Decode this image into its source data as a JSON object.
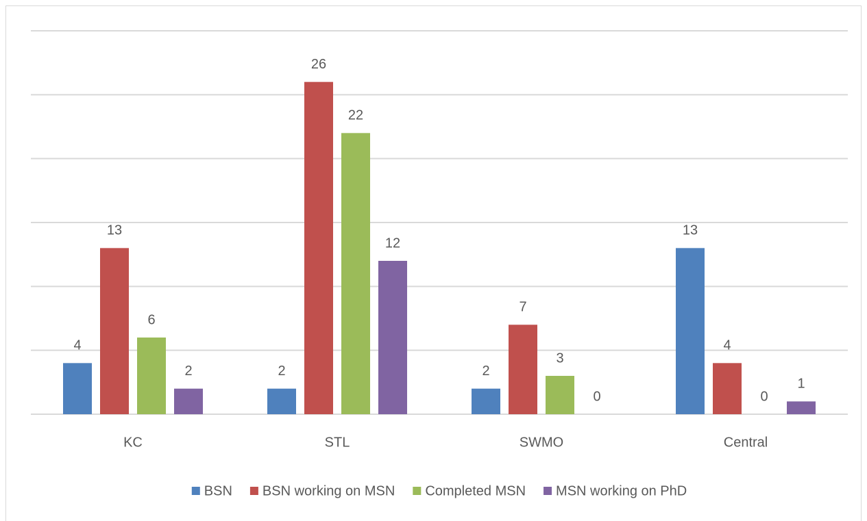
{
  "chart_data": {
    "type": "bar",
    "categories": [
      "KC",
      "STL",
      "SWMO",
      "Central"
    ],
    "series": [
      {
        "name": "BSN",
        "color": "#4f81bd",
        "values": [
          4,
          2,
          2,
          13
        ]
      },
      {
        "name": "BSN working on MSN",
        "color": "#c0504d",
        "values": [
          13,
          26,
          7,
          4
        ]
      },
      {
        "name": "Completed MSN",
        "color": "#9bbb59",
        "values": [
          6,
          22,
          3,
          0
        ]
      },
      {
        "name": "MSN working on PhD",
        "color": "#8064a2",
        "values": [
          2,
          12,
          0,
          1
        ]
      }
    ],
    "ylim": [
      0,
      30
    ],
    "yticks": [
      0,
      5,
      10,
      15,
      20,
      25,
      30
    ],
    "grid": true,
    "legend": "bottom"
  }
}
